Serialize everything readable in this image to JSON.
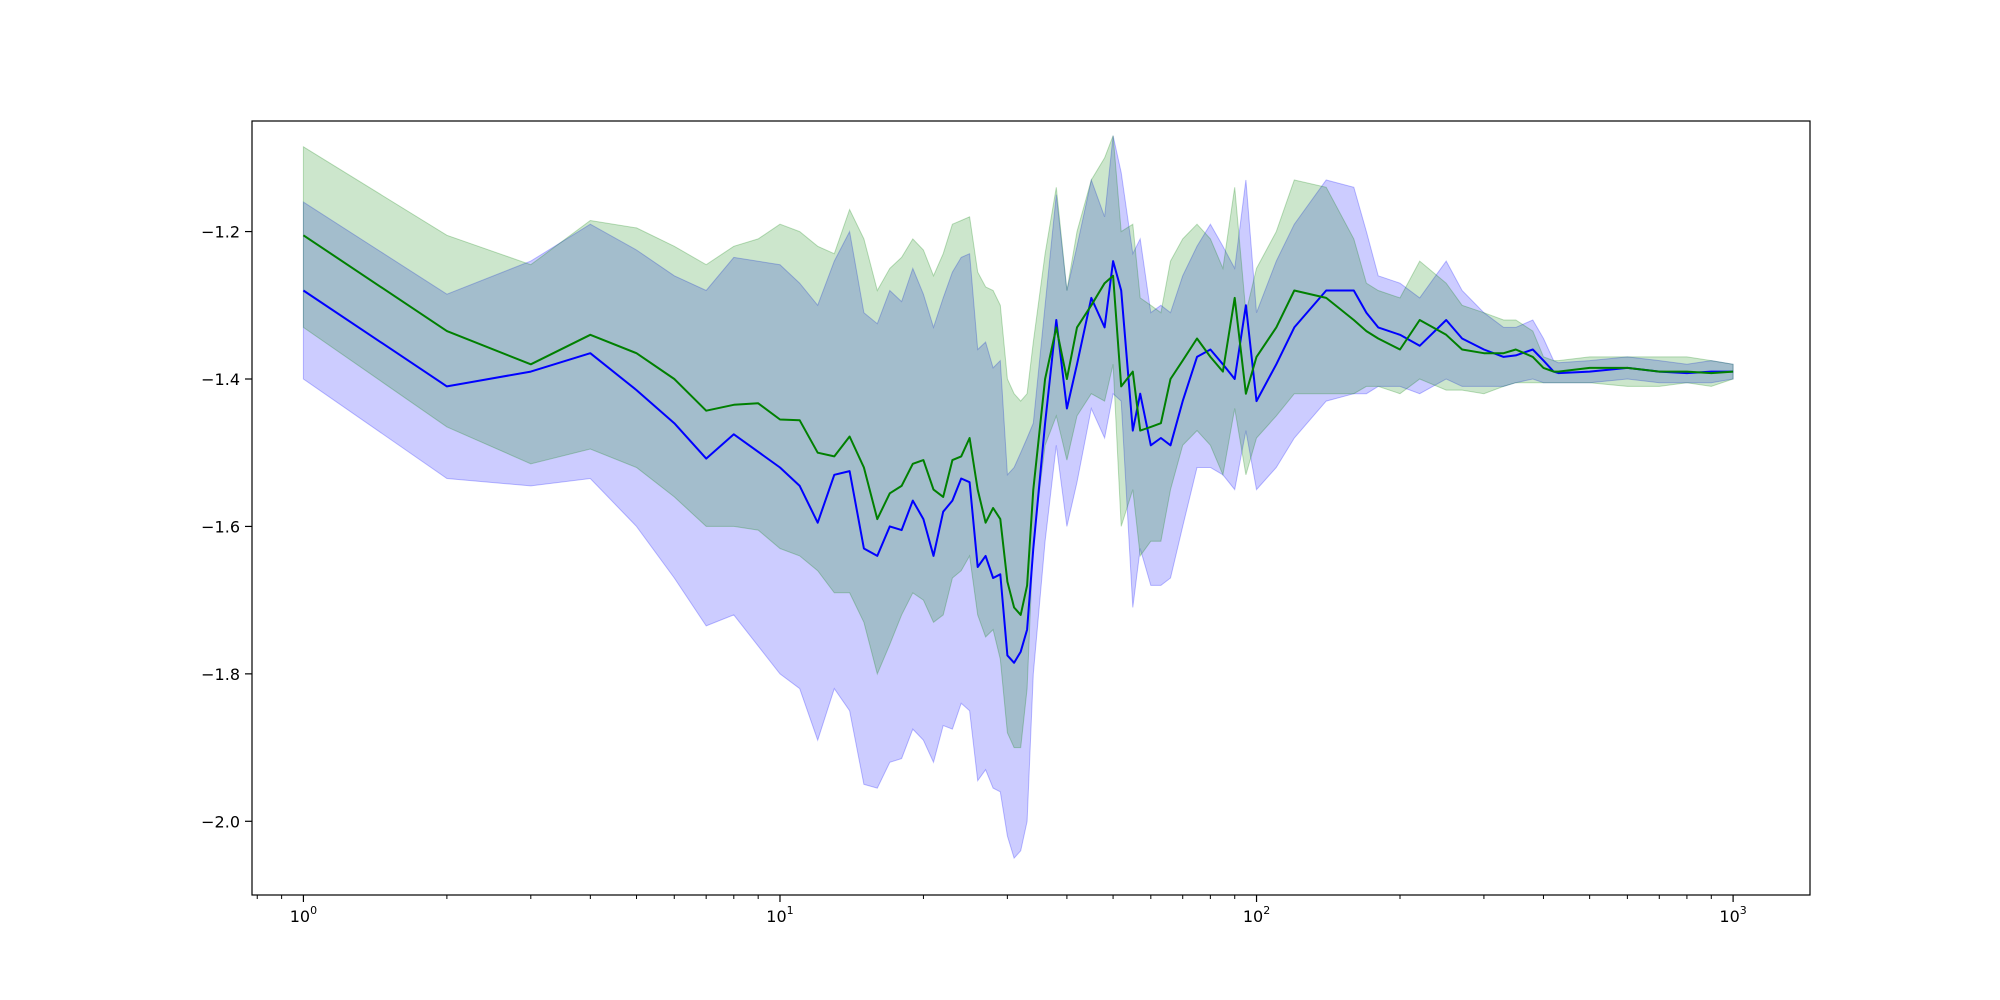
{
  "chart_data": {
    "type": "line",
    "title": "",
    "xlabel": "",
    "ylabel": "",
    "xscale": "log",
    "xlim": [
      0.78,
      1450
    ],
    "ylim": [
      -2.1,
      -1.05
    ],
    "grid": false,
    "legend": "none",
    "x_ticks": [
      {
        "value": 1,
        "base": "10",
        "exp": "0"
      },
      {
        "value": 10,
        "base": "10",
        "exp": "1"
      },
      {
        "value": 100,
        "base": "10",
        "exp": "2"
      },
      {
        "value": 1000,
        "base": "10",
        "exp": "3"
      }
    ],
    "y_ticks": [
      {
        "value": -1.2,
        "label": "−1.2"
      },
      {
        "value": -1.4,
        "label": "−1.4"
      },
      {
        "value": -1.6,
        "label": "−1.6"
      },
      {
        "value": -1.8,
        "label": "−1.8"
      },
      {
        "value": -2.0,
        "label": "−2.0"
      }
    ],
    "series": [
      {
        "color": "#0000ff",
        "band_color": "#0000ff",
        "band_opacity": 0.2,
        "x": [
          1,
          2,
          3,
          4,
          5,
          6,
          7,
          8,
          10,
          11,
          12,
          13,
          14,
          15,
          16,
          17,
          18,
          19,
          20,
          21,
          22,
          23,
          24,
          25,
          26,
          27,
          28,
          29,
          30,
          31,
          32,
          33,
          34,
          36,
          38,
          40,
          42,
          45,
          48,
          50,
          52,
          55,
          57,
          60,
          63,
          66,
          70,
          75,
          80,
          85,
          90,
          95,
          100,
          110,
          120,
          140,
          160,
          170,
          180,
          200,
          220,
          250,
          270,
          300,
          330,
          350,
          380,
          400,
          420,
          430,
          500,
          600,
          700,
          800,
          900,
          1000
        ],
        "y": [
          -1.28,
          -1.41,
          -1.39,
          -1.365,
          -1.415,
          -1.46,
          -1.508,
          -1.475,
          -1.52,
          -1.545,
          -1.595,
          -1.53,
          -1.525,
          -1.63,
          -1.64,
          -1.6,
          -1.605,
          -1.565,
          -1.59,
          -1.64,
          -1.58,
          -1.565,
          -1.535,
          -1.54,
          -1.655,
          -1.64,
          -1.67,
          -1.665,
          -1.775,
          -1.785,
          -1.77,
          -1.74,
          -1.63,
          -1.46,
          -1.32,
          -1.44,
          -1.38,
          -1.29,
          -1.33,
          -1.24,
          -1.28,
          -1.47,
          -1.42,
          -1.49,
          -1.48,
          -1.49,
          -1.43,
          -1.37,
          -1.36,
          -1.38,
          -1.4,
          -1.3,
          -1.43,
          -1.38,
          -1.33,
          -1.28,
          -1.28,
          -1.31,
          -1.33,
          -1.34,
          -1.355,
          -1.32,
          -1.345,
          -1.36,
          -1.37,
          -1.368,
          -1.36,
          -1.375,
          -1.39,
          -1.392,
          -1.39,
          -1.385,
          -1.39,
          -1.392,
          -1.39,
          -1.39
        ],
        "lower": [
          -1.4,
          -1.535,
          -1.545,
          -1.535,
          -1.6,
          -1.67,
          -1.735,
          -1.72,
          -1.8,
          -1.82,
          -1.89,
          -1.82,
          -1.85,
          -1.95,
          -1.955,
          -1.92,
          -1.915,
          -1.875,
          -1.89,
          -1.92,
          -1.87,
          -1.875,
          -1.84,
          -1.85,
          -1.945,
          -1.93,
          -1.955,
          -1.96,
          -2.02,
          -2.05,
          -2.04,
          -2.0,
          -1.8,
          -1.62,
          -1.49,
          -1.6,
          -1.54,
          -1.44,
          -1.48,
          -1.42,
          -1.43,
          -1.71,
          -1.63,
          -1.68,
          -1.68,
          -1.67,
          -1.6,
          -1.52,
          -1.52,
          -1.53,
          -1.55,
          -1.47,
          -1.55,
          -1.52,
          -1.48,
          -1.43,
          -1.42,
          -1.42,
          -1.41,
          -1.41,
          -1.42,
          -1.4,
          -1.41,
          -1.41,
          -1.41,
          -1.405,
          -1.4,
          -1.405,
          -1.405,
          -1.405,
          -1.405,
          -1.4,
          -1.405,
          -1.405,
          -1.405,
          -1.4
        ],
        "upper": [
          -1.16,
          -1.285,
          -1.24,
          -1.19,
          -1.225,
          -1.26,
          -1.28,
          -1.235,
          -1.245,
          -1.27,
          -1.3,
          -1.24,
          -1.2,
          -1.31,
          -1.325,
          -1.28,
          -1.295,
          -1.25,
          -1.285,
          -1.33,
          -1.29,
          -1.255,
          -1.235,
          -1.23,
          -1.36,
          -1.35,
          -1.385,
          -1.375,
          -1.53,
          -1.52,
          -1.5,
          -1.48,
          -1.46,
          -1.3,
          -1.15,
          -1.28,
          -1.22,
          -1.13,
          -1.18,
          -1.07,
          -1.12,
          -1.23,
          -1.21,
          -1.31,
          -1.3,
          -1.31,
          -1.26,
          -1.22,
          -1.19,
          -1.22,
          -1.25,
          -1.13,
          -1.31,
          -1.24,
          -1.19,
          -1.13,
          -1.14,
          -1.2,
          -1.26,
          -1.27,
          -1.29,
          -1.24,
          -1.28,
          -1.31,
          -1.33,
          -1.33,
          -1.32,
          -1.345,
          -1.375,
          -1.378,
          -1.375,
          -1.37,
          -1.375,
          -1.38,
          -1.375,
          -1.38
        ]
      },
      {
        "color": "#008000",
        "band_color": "#008000",
        "band_opacity": 0.2,
        "x": [
          1,
          2,
          3,
          4,
          5,
          6,
          7,
          8,
          9,
          10,
          11,
          12,
          13,
          14,
          15,
          16,
          17,
          18,
          19,
          20,
          21,
          22,
          23,
          24,
          25,
          26,
          27,
          28,
          29,
          30,
          31,
          32,
          33,
          34,
          36,
          38,
          40,
          42,
          45,
          48,
          50,
          52,
          55,
          57,
          60,
          63,
          66,
          70,
          75,
          80,
          85,
          90,
          95,
          100,
          110,
          120,
          140,
          160,
          170,
          180,
          200,
          220,
          250,
          270,
          300,
          330,
          350,
          380,
          400,
          420,
          430,
          500,
          600,
          700,
          800,
          900,
          1000
        ],
        "y": [
          -1.205,
          -1.335,
          -1.38,
          -1.34,
          -1.365,
          -1.4,
          -1.443,
          -1.435,
          -1.433,
          -1.455,
          -1.456,
          -1.5,
          -1.505,
          -1.478,
          -1.52,
          -1.59,
          -1.555,
          -1.545,
          -1.515,
          -1.51,
          -1.55,
          -1.56,
          -1.51,
          -1.505,
          -1.48,
          -1.55,
          -1.595,
          -1.575,
          -1.59,
          -1.675,
          -1.71,
          -1.72,
          -1.68,
          -1.55,
          -1.4,
          -1.33,
          -1.4,
          -1.33,
          -1.3,
          -1.27,
          -1.26,
          -1.41,
          -1.39,
          -1.47,
          -1.465,
          -1.46,
          -1.4,
          -1.375,
          -1.345,
          -1.37,
          -1.39,
          -1.29,
          -1.42,
          -1.37,
          -1.33,
          -1.28,
          -1.29,
          -1.32,
          -1.335,
          -1.345,
          -1.36,
          -1.32,
          -1.34,
          -1.36,
          -1.365,
          -1.365,
          -1.36,
          -1.37,
          -1.385,
          -1.39,
          -1.39,
          -1.385,
          -1.385,
          -1.39,
          -1.39,
          -1.392,
          -1.39
        ],
        "lower": [
          -1.33,
          -1.465,
          -1.515,
          -1.495,
          -1.52,
          -1.56,
          -1.6,
          -1.6,
          -1.605,
          -1.63,
          -1.64,
          -1.66,
          -1.69,
          -1.69,
          -1.73,
          -1.8,
          -1.76,
          -1.72,
          -1.69,
          -1.7,
          -1.73,
          -1.72,
          -1.67,
          -1.66,
          -1.64,
          -1.72,
          -1.75,
          -1.74,
          -1.78,
          -1.88,
          -1.9,
          -1.9,
          -1.82,
          -1.62,
          -1.49,
          -1.45,
          -1.51,
          -1.45,
          -1.42,
          -1.43,
          -1.38,
          -1.6,
          -1.55,
          -1.64,
          -1.62,
          -1.62,
          -1.55,
          -1.49,
          -1.47,
          -1.49,
          -1.53,
          -1.44,
          -1.53,
          -1.48,
          -1.45,
          -1.42,
          -1.42,
          -1.42,
          -1.41,
          -1.41,
          -1.42,
          -1.4,
          -1.415,
          -1.415,
          -1.42,
          -1.41,
          -1.405,
          -1.405,
          -1.405,
          -1.405,
          -1.405,
          -1.405,
          -1.41,
          -1.41,
          -1.405,
          -1.41,
          -1.4
        ],
        "upper": [
          -1.085,
          -1.205,
          -1.245,
          -1.185,
          -1.195,
          -1.22,
          -1.245,
          -1.22,
          -1.21,
          -1.19,
          -1.2,
          -1.22,
          -1.23,
          -1.17,
          -1.21,
          -1.28,
          -1.25,
          -1.235,
          -1.21,
          -1.225,
          -1.26,
          -1.23,
          -1.19,
          -1.185,
          -1.18,
          -1.255,
          -1.275,
          -1.28,
          -1.3,
          -1.4,
          -1.42,
          -1.43,
          -1.42,
          -1.35,
          -1.23,
          -1.14,
          -1.28,
          -1.2,
          -1.13,
          -1.1,
          -1.07,
          -1.2,
          -1.19,
          -1.29,
          -1.3,
          -1.31,
          -1.24,
          -1.21,
          -1.19,
          -1.21,
          -1.25,
          -1.14,
          -1.31,
          -1.25,
          -1.2,
          -1.13,
          -1.14,
          -1.21,
          -1.27,
          -1.28,
          -1.29,
          -1.24,
          -1.27,
          -1.3,
          -1.31,
          -1.32,
          -1.32,
          -1.335,
          -1.37,
          -1.375,
          -1.375,
          -1.37,
          -1.37,
          -1.37,
          -1.37,
          -1.375,
          -1.38
        ]
      }
    ]
  }
}
